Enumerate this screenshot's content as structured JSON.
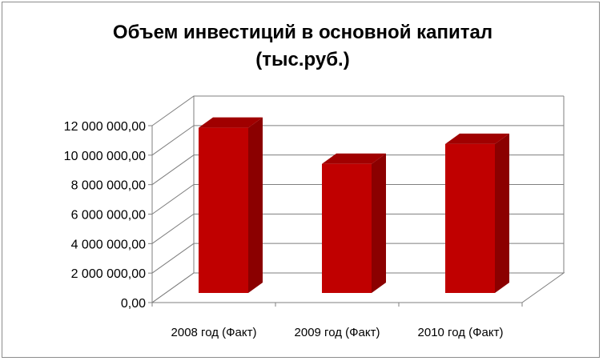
{
  "chart_data": {
    "type": "bar",
    "title_line1": "Объем инвестиций в основной капитал",
    "title_line2": "(тыс.руб.)",
    "categories": [
      "2008 год (Факт)",
      "2009 год  (Факт)",
      "2010 год  (Факт)"
    ],
    "values": [
      11750000,
      9300000,
      10650000
    ],
    "ylim": [
      0,
      12000000
    ],
    "yticks": [
      0,
      2000000,
      4000000,
      6000000,
      8000000,
      10000000,
      12000000
    ],
    "ytick_labels": [
      "0,00",
      "2 000 000,00",
      "4 000 000,00",
      "6 000 000,00",
      "8 000 000,00",
      "10 000 000,00",
      "12 000 000,00"
    ],
    "grid": true,
    "legend": "none",
    "colors": {
      "bar_front": "#c00000",
      "bar_side": "#8b0000",
      "bar_top": "#a00000",
      "grid": "#7f7f7f"
    }
  }
}
